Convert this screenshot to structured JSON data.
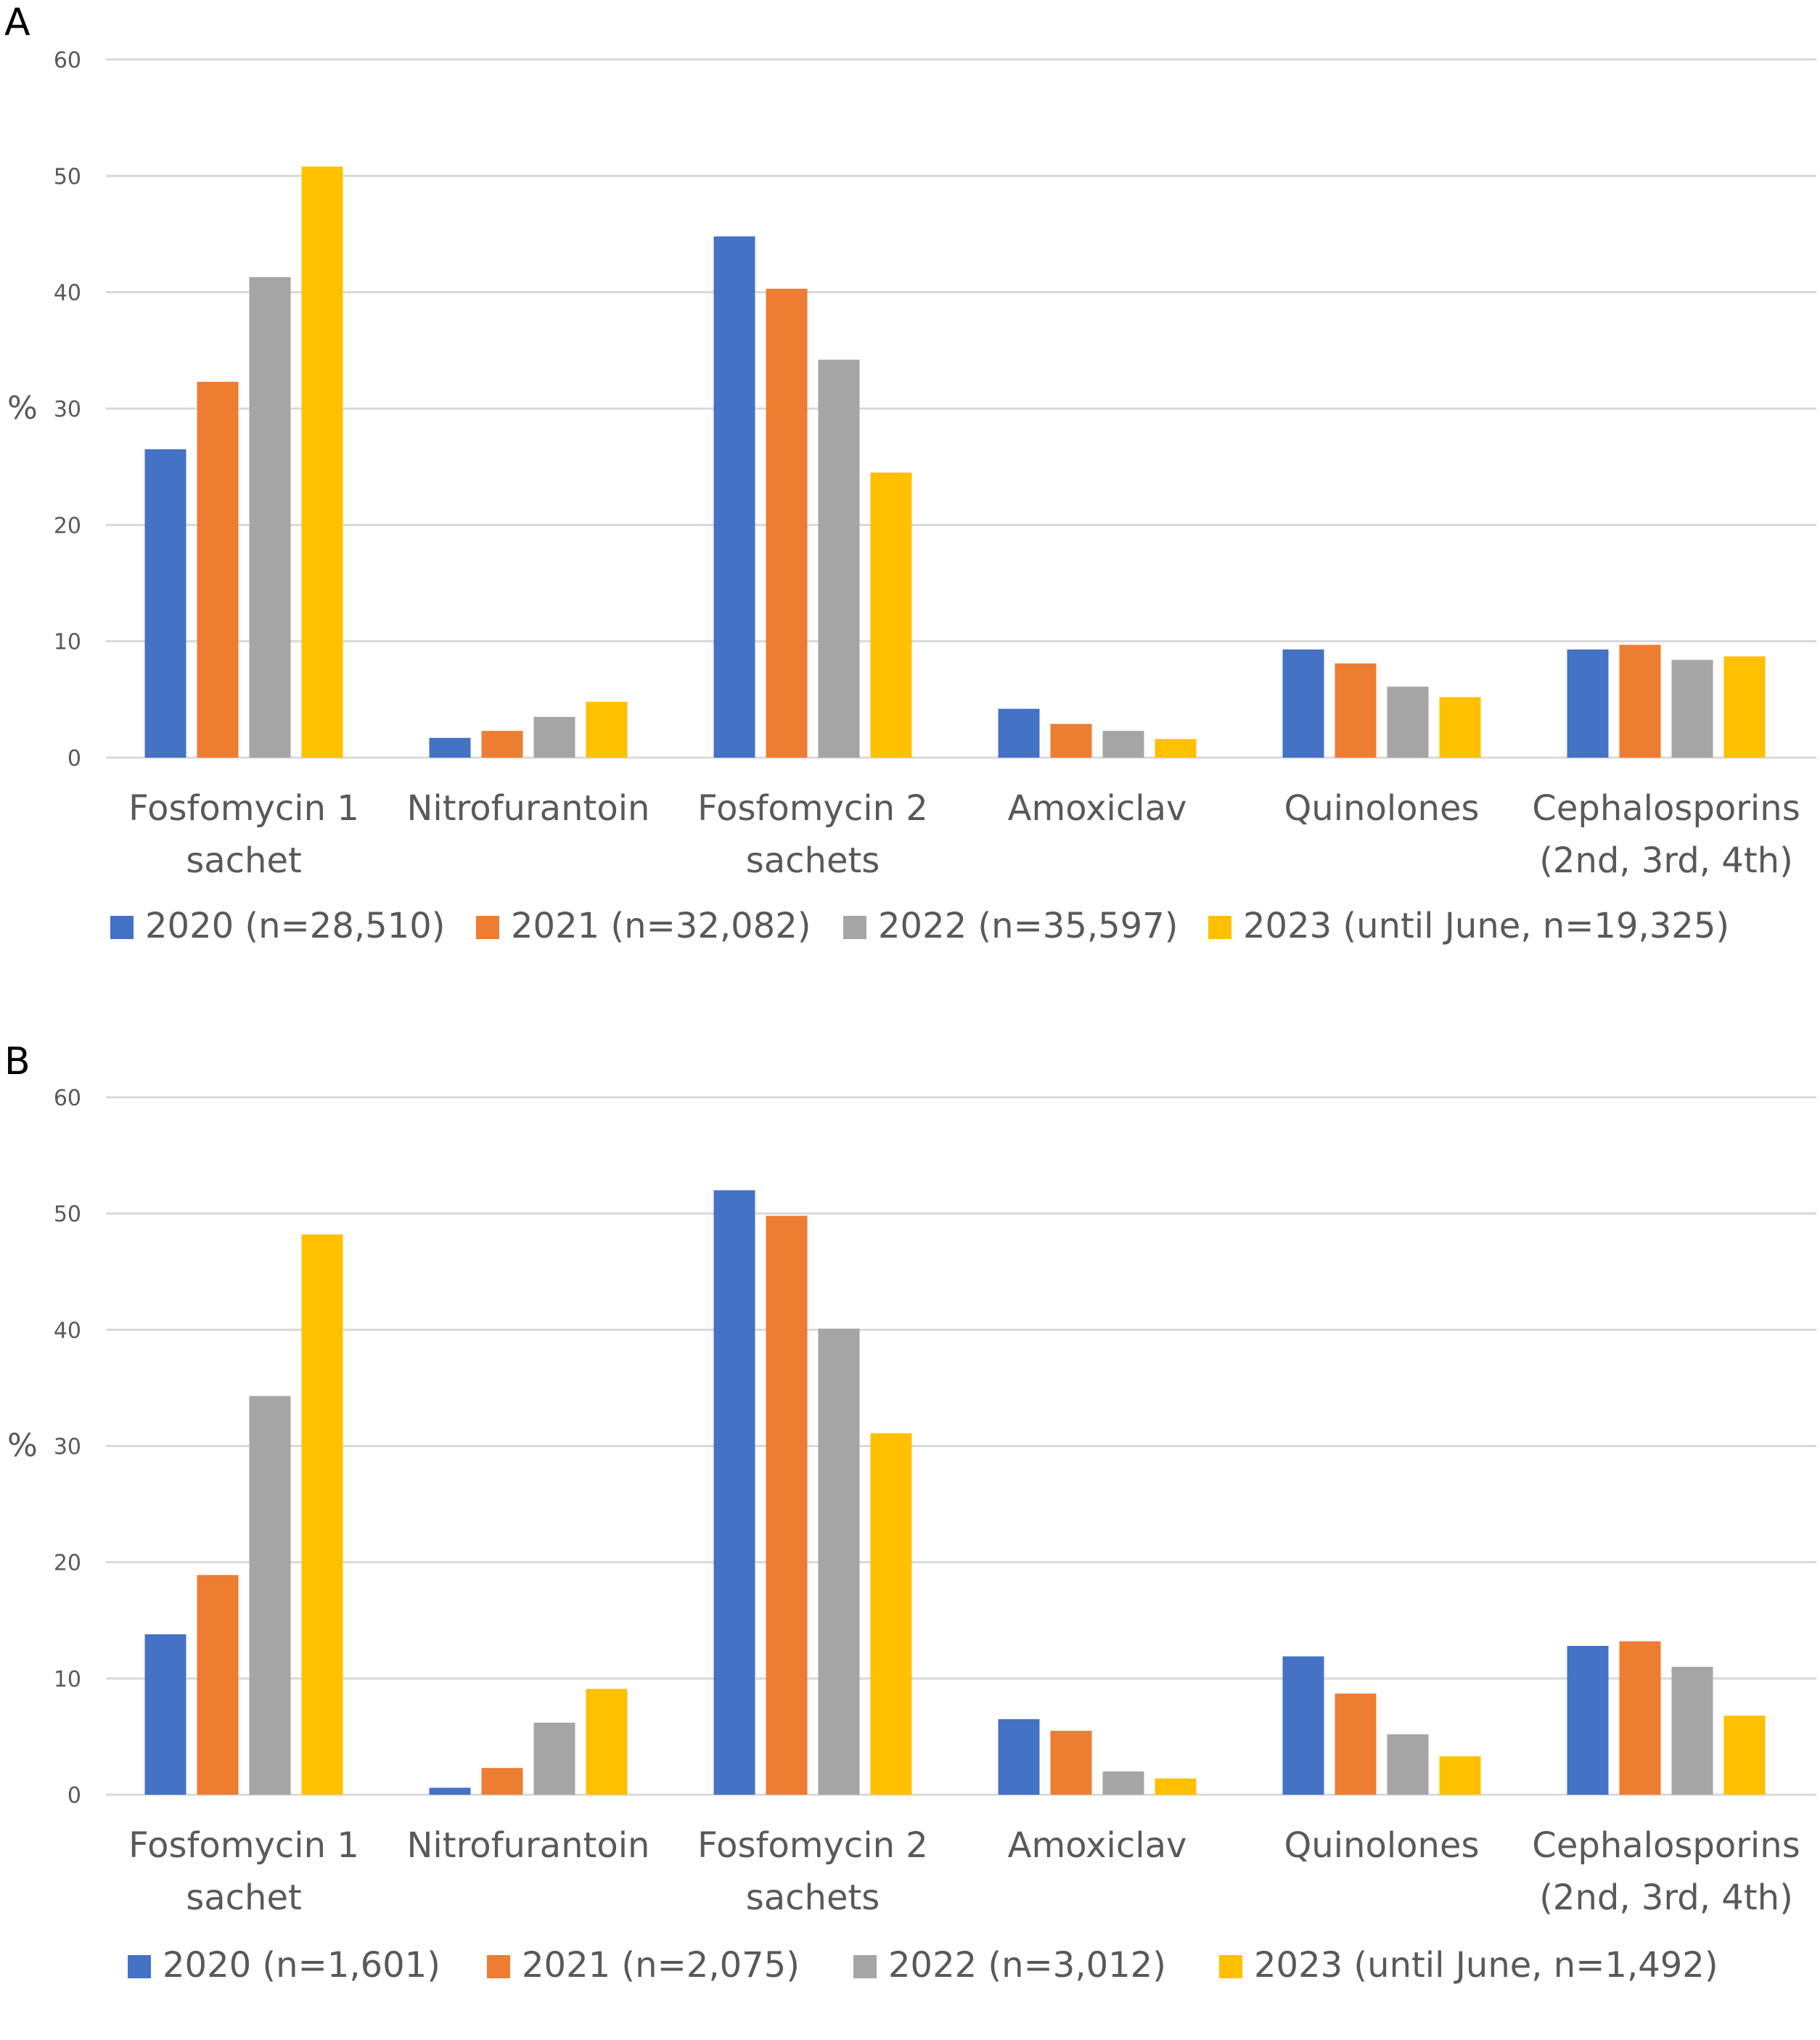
{
  "chart_data": [
    {
      "type": "bar",
      "panel_label": "A",
      "ylabel": "%",
      "ylim": [
        0,
        60
      ],
      "yticks": [
        0,
        10,
        20,
        30,
        40,
        50,
        60
      ],
      "categories": [
        [
          "Fosfomycin 1",
          "sachet"
        ],
        [
          "Nitrofurantoin"
        ],
        [
          "Fosfomycin 2",
          "sachets"
        ],
        [
          "Amoxiclav"
        ],
        [
          "Quinolones"
        ],
        [
          "Cephalosporins",
          "(2nd, 3rd, 4th)"
        ]
      ],
      "series": [
        {
          "name": "2020 (n=28,510)",
          "color": "#4472c4",
          "values": [
            26.5,
            1.7,
            44.8,
            4.2,
            9.3,
            9.3
          ]
        },
        {
          "name": "2021 (n=32,082)",
          "color": "#ed7d31",
          "values": [
            32.3,
            2.3,
            40.3,
            2.9,
            8.1,
            9.7
          ]
        },
        {
          "name": "2022 (n=35,597)",
          "color": "#a5a5a5",
          "values": [
            41.3,
            3.5,
            34.2,
            2.3,
            6.1,
            8.4
          ]
        },
        {
          "name": "2023 (until June, n=19,325)",
          "color": "#ffc000",
          "values": [
            50.8,
            4.8,
            24.5,
            1.6,
            5.2,
            8.7
          ]
        }
      ],
      "grid": true,
      "legend": "bottom"
    },
    {
      "type": "bar",
      "panel_label": "B",
      "ylabel": "%",
      "ylim": [
        0,
        60
      ],
      "yticks": [
        0,
        10,
        20,
        30,
        40,
        50,
        60
      ],
      "categories": [
        [
          "Fosfomycin 1",
          "sachet"
        ],
        [
          "Nitrofurantoin"
        ],
        [
          "Fosfomycin 2",
          "sachets"
        ],
        [
          "Amoxiclav"
        ],
        [
          "Quinolones"
        ],
        [
          "Cephalosporins",
          "(2nd, 3rd, 4th)"
        ]
      ],
      "series": [
        {
          "name": "2020 (n=1,601)",
          "color": "#4472c4",
          "values": [
            13.8,
            0.6,
            52.0,
            6.5,
            11.9,
            12.8
          ]
        },
        {
          "name": "2021 (n=2,075)",
          "color": "#ed7d31",
          "values": [
            18.9,
            2.3,
            49.8,
            5.5,
            8.7,
            13.2
          ]
        },
        {
          "name": "2022 (n=3,012)",
          "color": "#a5a5a5",
          "values": [
            34.3,
            6.2,
            40.1,
            2.0,
            5.2,
            11.0
          ]
        },
        {
          "name": "2023 (until June, n=1,492)",
          "color": "#ffc000",
          "values": [
            48.2,
            9.1,
            31.1,
            1.4,
            3.3,
            6.8
          ]
        }
      ],
      "grid": true,
      "legend": "bottom"
    }
  ]
}
